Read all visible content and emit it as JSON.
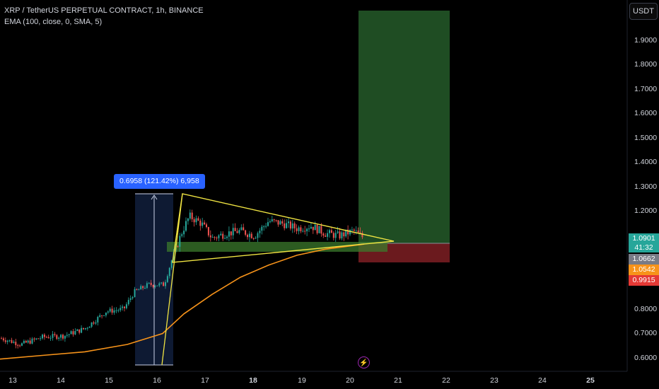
{
  "header": {
    "title": "XRP / TetherUS PERPETUAL CONTRACT, 1h, BINANCE",
    "indicator": "EMA (100, close, 0, SMA, 5)"
  },
  "currency_button": "USDT",
  "measure_label": "0.6958 (121.42%) 6,958",
  "price_axis": {
    "ticks": [
      "1.9000",
      "1.8000",
      "1.7000",
      "1.6000",
      "1.5000",
      "1.4000",
      "1.3000",
      "1.2000",
      "0.8000",
      "0.7000",
      "0.6000"
    ],
    "tags": [
      {
        "text": "1.0901",
        "color": "#26a69a"
      },
      {
        "text": "41:32",
        "color": "#26a69a"
      },
      {
        "text": "1.0662",
        "color": "#787b86"
      },
      {
        "text": "1.0542",
        "color": "#f7931a"
      },
      {
        "text": "0.9915",
        "color": "#e53935"
      }
    ]
  },
  "time_axis": {
    "ticks": [
      {
        "label": "13",
        "bold": false
      },
      {
        "label": "14",
        "bold": false
      },
      {
        "label": "15",
        "bold": false
      },
      {
        "label": "16",
        "bold": false
      },
      {
        "label": "17",
        "bold": false
      },
      {
        "label": "18",
        "bold": true
      },
      {
        "label": "19",
        "bold": false
      },
      {
        "label": "20",
        "bold": false
      },
      {
        "label": "21",
        "bold": false
      },
      {
        "label": "22",
        "bold": false
      },
      {
        "label": "23",
        "bold": false
      },
      {
        "label": "24",
        "bold": false
      },
      {
        "label": "25",
        "bold": false
      }
    ]
  },
  "colors": {
    "background": "#000000",
    "bull": "#26a69a",
    "bear": "#ef5350",
    "ema": "#f7931a",
    "triangle": "#f0e442",
    "target_zone": "#1f4d23",
    "stop_zone": "#6b1a1e",
    "measure": "#2962ff"
  },
  "event_icon": "lightning-icon"
}
